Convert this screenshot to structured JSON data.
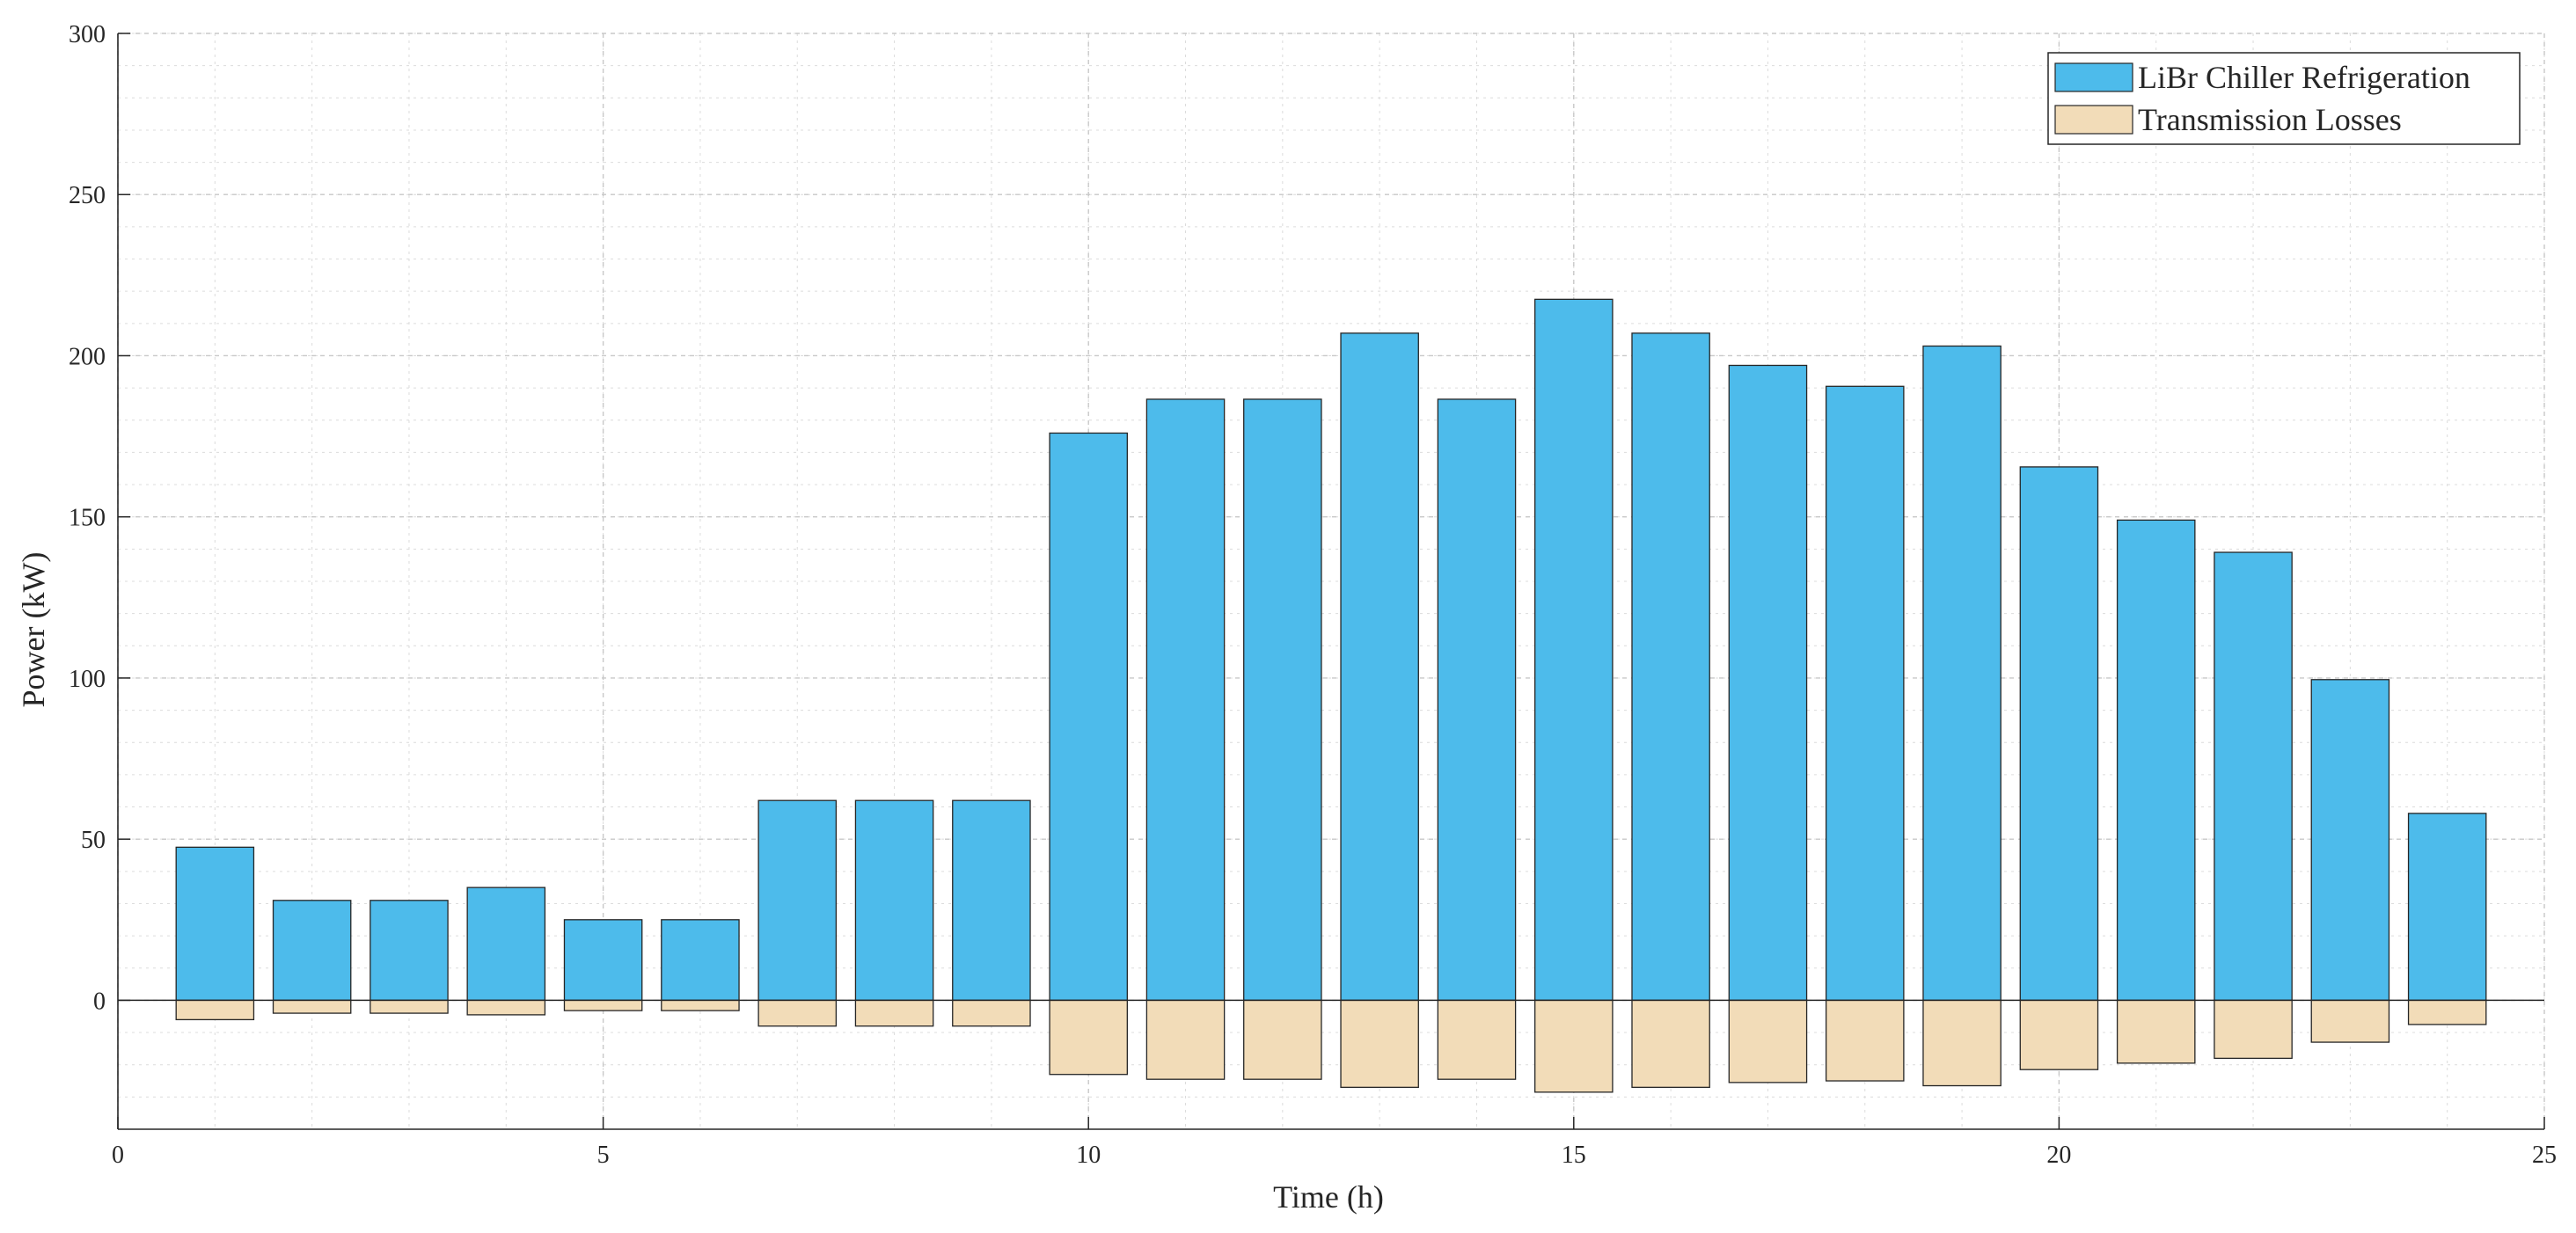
{
  "chart_data": {
    "type": "bar",
    "title": "",
    "xlabel": "Time (h)",
    "ylabel": "Power (kW)",
    "xlim": [
      0,
      25
    ],
    "ylim": [
      -40,
      300
    ],
    "x_ticks": [
      0,
      5,
      10,
      15,
      20,
      25
    ],
    "y_ticks": [
      0,
      50,
      100,
      150,
      200,
      250,
      300
    ],
    "grid": true,
    "minor_grid": true,
    "legend_position": "top-right",
    "x": [
      1,
      2,
      3,
      4,
      5,
      6,
      7,
      8,
      9,
      10,
      11,
      12,
      13,
      14,
      15,
      16,
      17,
      18,
      19,
      20,
      21,
      22,
      23,
      24
    ],
    "series": [
      {
        "name": "LiBr Chiller Refrigeration",
        "color": "#4dbbeb",
        "values": [
          47.5,
          31,
          31,
          35,
          25,
          25,
          62,
          62,
          62,
          176,
          186.5,
          186.5,
          207,
          186.5,
          217.5,
          207,
          197,
          190.5,
          203,
          165.5,
          149,
          139,
          99.5,
          58
        ]
      },
      {
        "name": "Transmission Losses",
        "color": "#f2dcb8",
        "values": [
          -6,
          -4,
          -4,
          -4.5,
          -3.2,
          -3.2,
          -8,
          -8,
          -8,
          -23,
          -24.5,
          -24.5,
          -27,
          -24.5,
          -28.5,
          -27,
          -25.5,
          -25,
          -26.5,
          -21.5,
          -19.5,
          -18,
          -13,
          -7.5
        ]
      }
    ]
  }
}
